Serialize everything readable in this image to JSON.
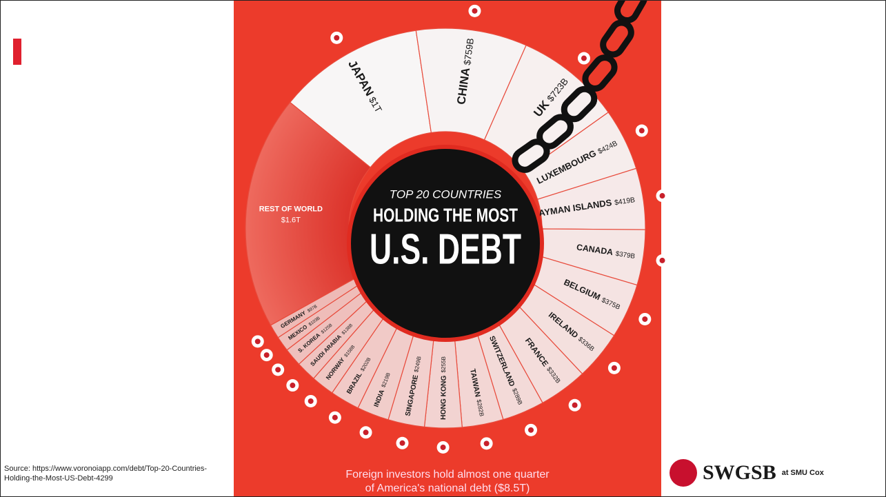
{
  "chart_data": {
    "type": "pie",
    "title": "TOP 20 COUNTRIES",
    "subtitle": "HOLDING THE MOST",
    "headline": "U.S. DEBT",
    "categories": [
      "JAPAN",
      "CHINA",
      "UK",
      "LUXEMBOURG",
      "CAYMAN ISLANDS",
      "CANADA",
      "BELGIUM",
      "IRELAND",
      "FRANCE",
      "SWITZERLAND",
      "TAIWAN",
      "HONG KONG",
      "SINGAPORE",
      "INDIA",
      "BRAZIL",
      "NORWAY",
      "SAUDI ARABIA",
      "S. KOREA",
      "MEXICO",
      "GERMANY",
      "REST OF WORLD"
    ],
    "values": [
      1000,
      759,
      723,
      424,
      419,
      379,
      375,
      336,
      332,
      289,
      282,
      255,
      249,
      219,
      202,
      158,
      138,
      125,
      103,
      97,
      1600
    ],
    "value_labels": [
      "$1T",
      "$759B",
      "$723B",
      "$424B",
      "$419B",
      "$379B",
      "$375B",
      "$336B",
      "$332B",
      "$289B",
      "$282B",
      "$255B",
      "$249B",
      "$219B",
      "$202B",
      "$158B",
      "$138B",
      "$125B",
      "$103B",
      "$97B",
      "$1.6T"
    ],
    "caption": [
      "Foreign investors hold almost one quarter",
      "of America's national debt ($8.5T)"
    ]
  },
  "source": "Source: https://www.voronoiapp.com/debt/Top-20-Countries-Holding-the-Most-US-Debt-4299",
  "logo": {
    "name": "SWGSB",
    "tagline": "at SMU Cox"
  }
}
